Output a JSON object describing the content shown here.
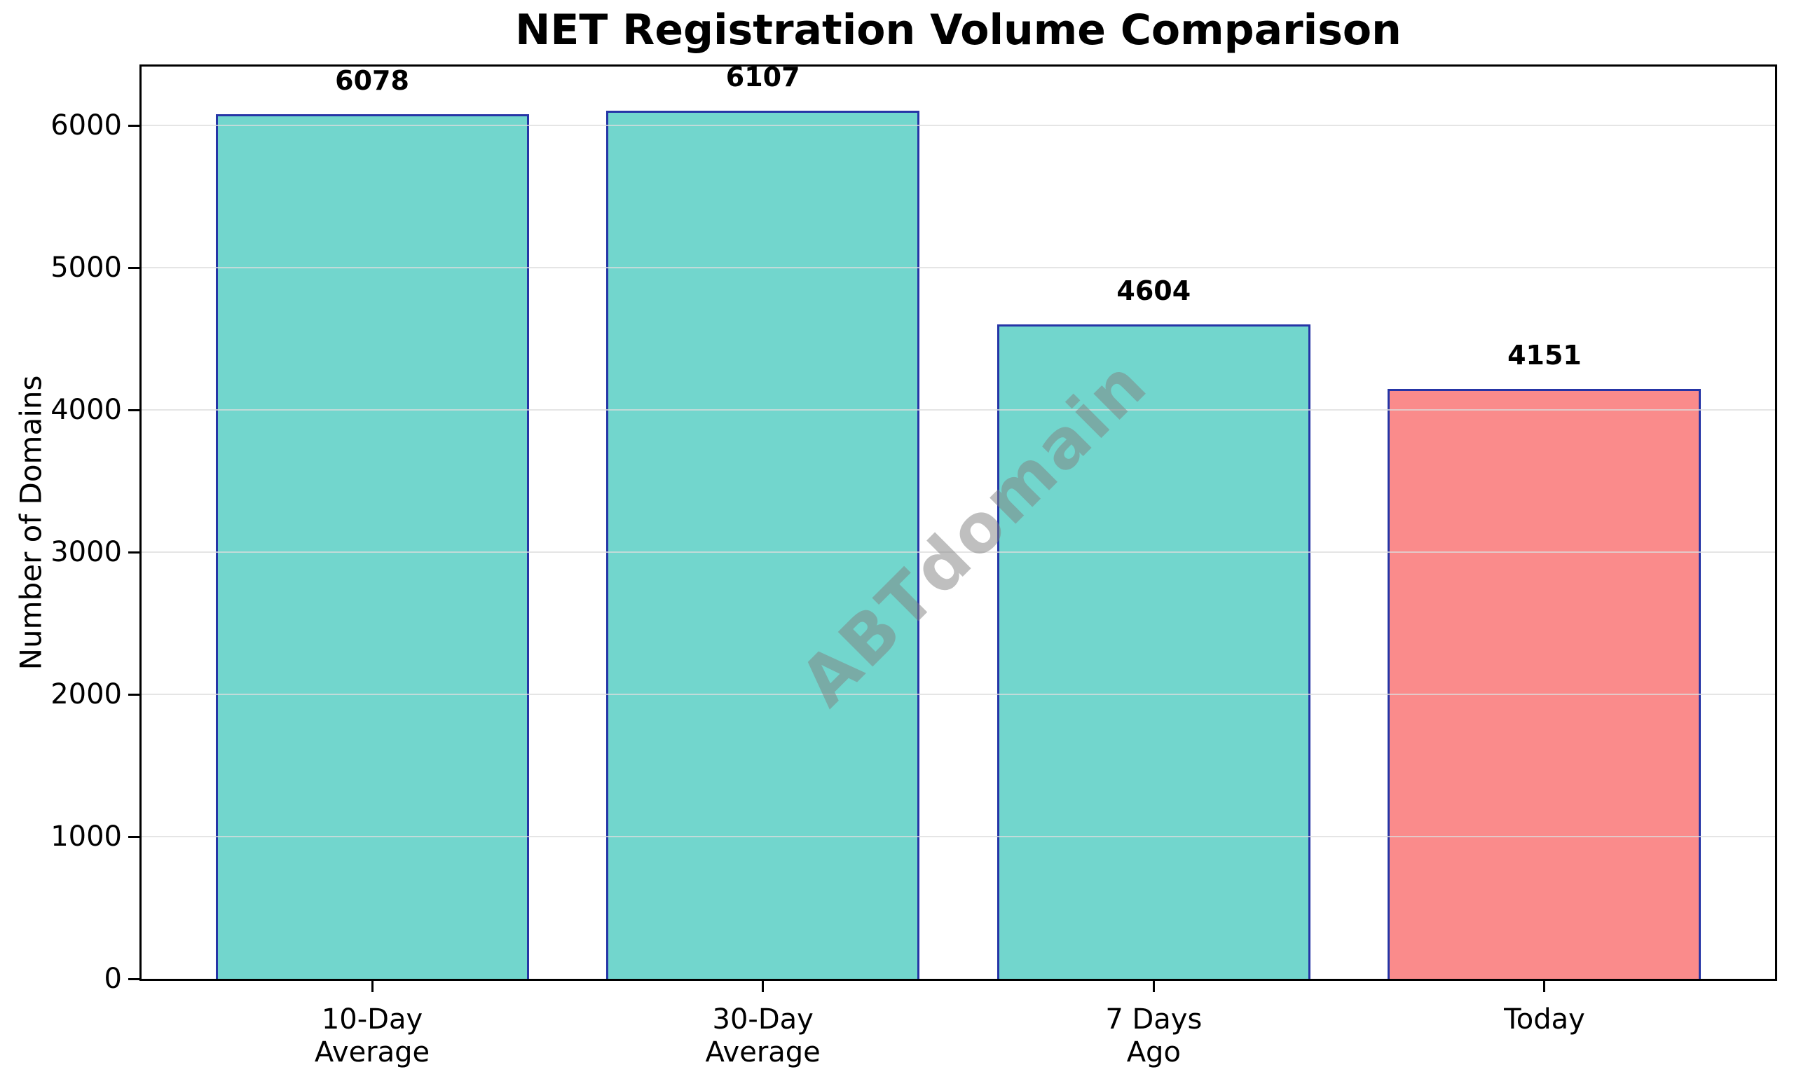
{
  "chart_data": {
    "type": "bar",
    "title": "NET Registration Volume Comparison",
    "ylabel": "Number of Domains",
    "xlabel": "",
    "categories": [
      [
        "10-Day",
        "Average"
      ],
      [
        "30-Day",
        "Average"
      ],
      [
        "7 Days",
        "Ago"
      ],
      [
        "Today"
      ]
    ],
    "values": [
      6078,
      6107,
      4604,
      4151
    ],
    "bar_colors": [
      "#72D6CD",
      "#72D6CD",
      "#72D6CD",
      "#FA8B8B"
    ],
    "bar_edge_color": "#2635A6",
    "yticks": [
      0,
      1000,
      2000,
      3000,
      4000,
      5000,
      6000
    ],
    "ylim": [
      0,
      6415
    ],
    "grid": "horizontal",
    "gridline_color": "#DCDCDC",
    "legend_position": "none",
    "watermark": {
      "text": "ABTdomain",
      "rotation_deg": 45,
      "color": "rgba(128,128,128,0.5)"
    }
  }
}
